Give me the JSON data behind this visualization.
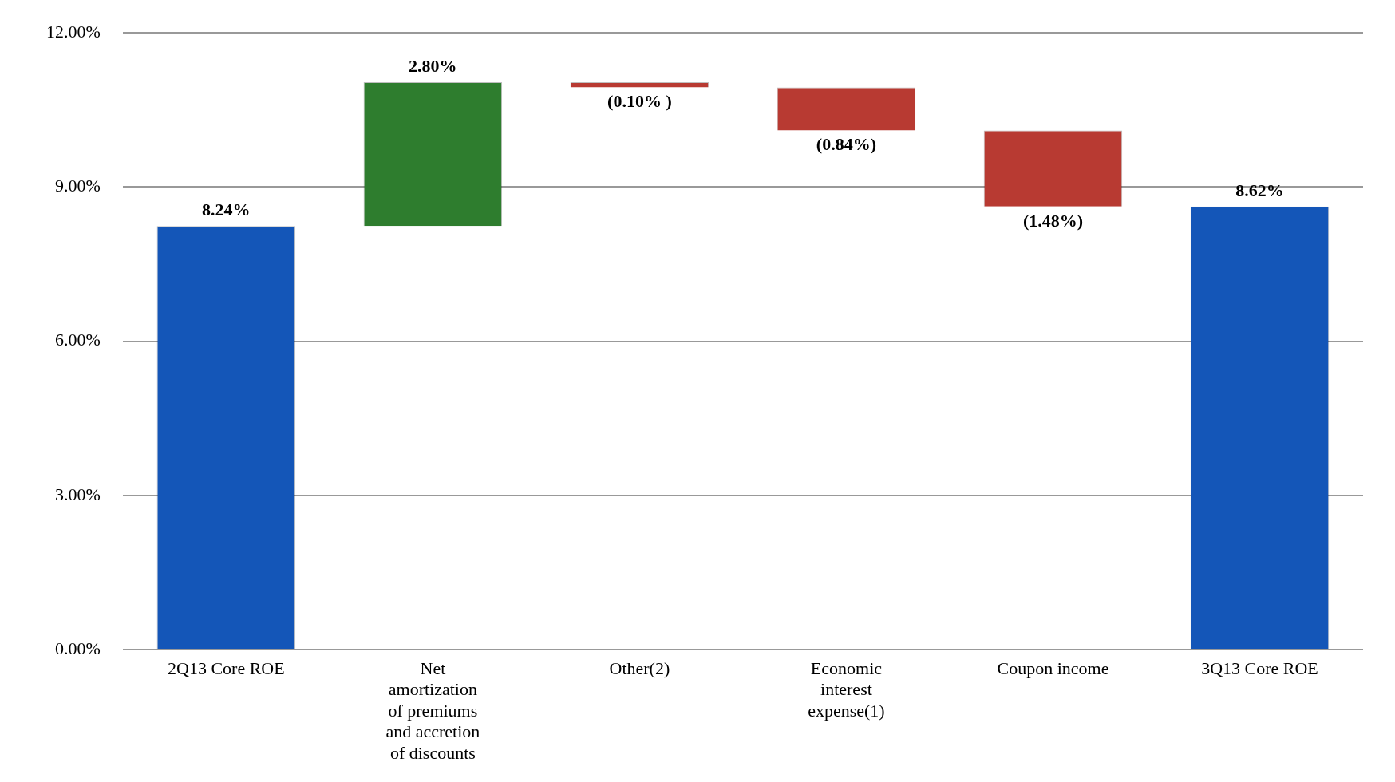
{
  "chart_data": {
    "type": "bar",
    "categories": [
      "2Q13 Core ROE",
      "Net amortization of premiums and accretion of discounts",
      "Other(2)",
      "Economic interest expense(1)",
      "Coupon income",
      "3Q13 Core ROE"
    ],
    "values": [
      8.24,
      2.8,
      -0.1,
      -0.84,
      -1.48,
      8.62
    ],
    "base": [
      0,
      8.24,
      11.04,
      10.94,
      10.1,
      0
    ],
    "colors": [
      "#1456b8",
      "#2e7d2e",
      "#b83a32",
      "#b83a32",
      "#b83a32",
      "#1456b8"
    ],
    "value_labels": [
      "8.24%",
      "2.80%",
      "(0.10% )",
      "(0.84%)",
      "(1.48%)",
      "8.62%"
    ],
    "ylim": [
      0,
      12
    ],
    "yticks": [
      {
        "value": 0,
        "label": "0.00%"
      },
      {
        "value": 3,
        "label": "3.00%"
      },
      {
        "value": 6,
        "label": "6.00%"
      },
      {
        "value": 9,
        "label": "9.00%"
      },
      {
        "value": 12,
        "label": "12.00%"
      }
    ],
    "grid": "y"
  }
}
